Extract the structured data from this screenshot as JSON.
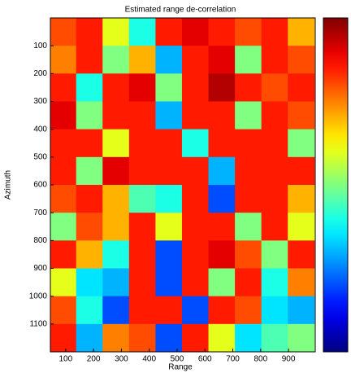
{
  "chart_data": {
    "type": "heatmap",
    "title": "Estimated range de-correlation",
    "xlabel": "Range",
    "ylabel": "Azimuth",
    "x": [
      90,
      185,
      280,
      375,
      470,
      565,
      660,
      755,
      850,
      945
    ],
    "y": [
      50,
      150,
      250,
      350,
      450,
      550,
      650,
      750,
      850,
      950,
      1050,
      1150
    ],
    "z": [
      [
        0.8,
        0.85,
        0.6,
        0.4,
        0.85,
        0.9,
        0.85,
        0.8,
        0.85,
        0.7
      ],
      [
        0.75,
        0.85,
        0.5,
        0.7,
        0.3,
        0.85,
        0.9,
        0.5,
        0.85,
        0.8
      ],
      [
        0.85,
        0.4,
        0.85,
        0.9,
        0.5,
        0.85,
        0.95,
        0.85,
        0.8,
        0.85
      ],
      [
        0.9,
        0.5,
        0.85,
        0.85,
        0.3,
        0.85,
        0.85,
        0.5,
        0.85,
        0.8
      ],
      [
        0.85,
        0.85,
        0.6,
        0.85,
        0.85,
        0.4,
        0.85,
        0.85,
        0.85,
        0.5
      ],
      [
        0.85,
        0.5,
        0.9,
        0.85,
        0.85,
        0.85,
        0.3,
        0.85,
        0.85,
        0.85
      ],
      [
        0.8,
        0.85,
        0.7,
        0.45,
        0.4,
        0.85,
        0.2,
        0.85,
        0.85,
        0.7
      ],
      [
        0.5,
        0.8,
        0.7,
        0.85,
        0.6,
        0.85,
        0.85,
        0.5,
        0.85,
        0.6
      ],
      [
        0.85,
        0.7,
        0.4,
        0.85,
        0.2,
        0.85,
        0.9,
        0.8,
        0.5,
        0.85
      ],
      [
        0.6,
        0.35,
        0.3,
        0.85,
        0.2,
        0.85,
        0.5,
        0.85,
        0.4,
        0.75
      ],
      [
        0.8,
        0.4,
        0.2,
        0.85,
        0.85,
        0.2,
        0.85,
        0.8,
        0.35,
        0.3
      ],
      [
        0.85,
        0.3,
        0.75,
        0.8,
        0.2,
        0.85,
        0.6,
        0.35,
        0.45,
        0.5
      ]
    ],
    "xlim": [
      45,
      996
    ],
    "xticks": [
      100,
      200,
      300,
      400,
      500,
      600,
      700,
      800,
      900
    ],
    "ylim": [
      1200,
      0
    ],
    "yticks": [
      100,
      200,
      300,
      400,
      500,
      600,
      700,
      800,
      900,
      1000,
      1100
    ],
    "clim": [
      0,
      1
    ],
    "colormap": "jet"
  }
}
